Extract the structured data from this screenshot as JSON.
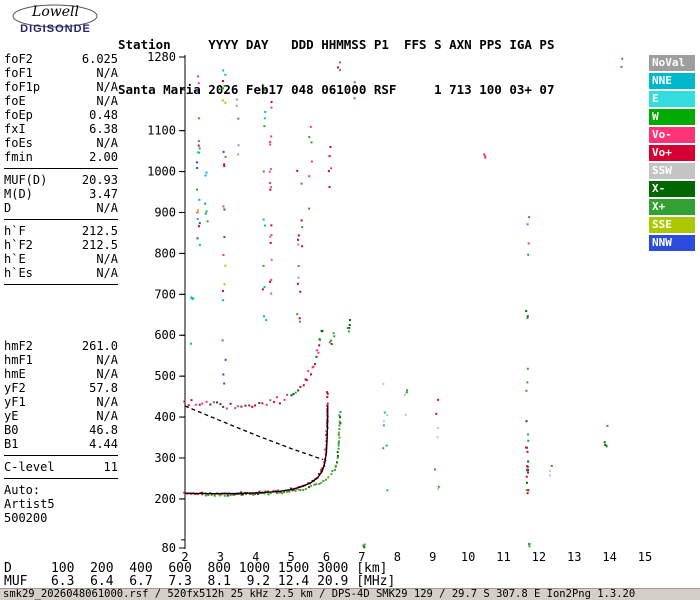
{
  "logo": {
    "line1": "Lowell",
    "line2": "DIGISONDE"
  },
  "header": {
    "line1": "Station     YYYY DAY   DDD HHMMSS P1  FFS S AXN PPS IGA PS",
    "line2": "Santa Maria 2026 Feb17 048 061000 RSF     1 713 100 03+ 07"
  },
  "params": {
    "groups": [
      {
        "rows": [
          {
            "label": "foF2",
            "value": "6.025"
          },
          {
            "label": "foF1",
            "value": "N/A"
          },
          {
            "label": "foF1p",
            "value": "N/A"
          },
          {
            "label": "foE",
            "value": "N/A"
          },
          {
            "label": "foEp",
            "value": "0.48"
          },
          {
            "label": "fxI",
            "value": "6.38"
          },
          {
            "label": "foEs",
            "value": "N/A"
          },
          {
            "label": "fmin",
            "value": "2.00"
          }
        ],
        "divider_after": true,
        "spacer_after": 0
      },
      {
        "rows": [
          {
            "label": "MUF(D)",
            "value": "20.93"
          },
          {
            "label": "M(D)",
            "value": "3.47"
          },
          {
            "label": "D",
            "value": "N/A"
          }
        ],
        "divider_after": true,
        "spacer_after": 0
      },
      {
        "rows": [
          {
            "label": "h`F",
            "value": "212.5"
          },
          {
            "label": "h`F2",
            "value": "212.5"
          },
          {
            "label": "h`E",
            "value": "N/A"
          },
          {
            "label": "h`Es",
            "value": "N/A"
          }
        ],
        "divider_after": true,
        "spacer_after": 50
      },
      {
        "rows": [
          {
            "label": "hmF2",
            "value": "261.0"
          },
          {
            "label": "hmF1",
            "value": "N/A"
          },
          {
            "label": "hmE",
            "value": "N/A"
          },
          {
            "label": "yF2",
            "value": "57.8"
          },
          {
            "label": "yF1",
            "value": "N/A"
          },
          {
            "label": "yE",
            "value": "N/A"
          },
          {
            "label": "B0",
            "value": "46.8"
          },
          {
            "label": "B1",
            "value": "4.44"
          }
        ],
        "divider_after": true,
        "spacer_after": 0
      },
      {
        "rows": [
          {
            "label": "C-level",
            "value": "11"
          }
        ],
        "divider_after": true,
        "spacer_after": 0
      },
      {
        "rows": [
          {
            "label": "Auto:",
            "value": ""
          },
          {
            "label": "Artist5",
            "value": ""
          },
          {
            "label": "500200",
            "value": ""
          }
        ],
        "divider_after": false,
        "spacer_after": 0
      }
    ]
  },
  "legend": {
    "items": [
      {
        "label": "NoVal",
        "color": "#9e9e9e"
      },
      {
        "label": "NNE",
        "color": "#00b8cc"
      },
      {
        "label": "E",
        "color": "#33dddd"
      },
      {
        "label": "W",
        "color": "#00aa00"
      },
      {
        "label": "Vo-",
        "color": "#ff3377"
      },
      {
        "label": "Vo+",
        "color": "#d40032"
      },
      {
        "label": "SSW",
        "color": "#c4c4c4"
      },
      {
        "label": "X-",
        "color": "#006600"
      },
      {
        "label": "X+",
        "color": "#33a033"
      },
      {
        "label": "SSE",
        "color": "#aac800"
      },
      {
        "label": "NNW",
        "color": "#2b4bdd"
      }
    ]
  },
  "footer": {
    "d_row": {
      "label": "D",
      "values": [
        "100",
        "200",
        "400",
        "600",
        "800",
        "1000",
        "1500",
        "3000"
      ],
      "unit": "[km]"
    },
    "muf_row": {
      "label": "MUF",
      "values": [
        "6.3",
        "6.4",
        "6.7",
        "7.3",
        "8.1",
        "9.2",
        "12.4",
        "20.9"
      ],
      "unit": "[MHz]"
    }
  },
  "status_bar": {
    "text": "smk29_2026048061000.rsf / 520fx512h 25 kHz 2.5 km / DPS-4D SMK29 129 / 29.7 S 307.8 E Ion2Png 1.3.20"
  },
  "chart_data": {
    "type": "scatter",
    "x_axis": {
      "unit": "[MHz]",
      "min": 2,
      "max": 15,
      "ticks": [
        2,
        3,
        4,
        5,
        6,
        7,
        8,
        9,
        10,
        11,
        12,
        13,
        14,
        15
      ]
    },
    "y_axis": {
      "unit": "[km]",
      "min": 80,
      "max": 1280,
      "tick_labels": [
        1280,
        1100,
        1000,
        900,
        800,
        700,
        600,
        500,
        400,
        300,
        200,
        80
      ]
    },
    "noise_seed": 48,
    "traces": [
      {
        "name": "f-layer-hop1-o-mode",
        "colors": [
          "#d40032",
          "#d40032",
          "#d40032",
          "#ff3377",
          "#a00028"
        ],
        "dot": 2,
        "step": 2.5,
        "jitter": 1.2,
        "points": [
          [
            2.0,
            213
          ],
          [
            2.3,
            212.5
          ],
          [
            2.7,
            212.5
          ],
          [
            3.1,
            212.5
          ],
          [
            3.5,
            213
          ],
          [
            3.9,
            214
          ],
          [
            4.2,
            215
          ],
          [
            4.5,
            217
          ],
          [
            4.8,
            220
          ],
          [
            5.0,
            223
          ],
          [
            5.2,
            227
          ],
          [
            5.4,
            233
          ],
          [
            5.6,
            242
          ],
          [
            5.75,
            253
          ],
          [
            5.85,
            265
          ],
          [
            5.92,
            281
          ],
          [
            5.96,
            301
          ],
          [
            5.99,
            330
          ],
          [
            6.01,
            365
          ],
          [
            6.02,
            400
          ],
          [
            6.03,
            432
          ]
        ]
      },
      {
        "name": "f-layer-hop1-x-mode",
        "colors": [
          "#33a033",
          "#33a033",
          "#006600",
          "#55aa22"
        ],
        "dot": 2,
        "step": 3,
        "jitter": 1.2,
        "points": [
          [
            2.5,
            210
          ],
          [
            2.9,
            210
          ],
          [
            3.3,
            210
          ],
          [
            3.7,
            211
          ],
          [
            4.1,
            212
          ],
          [
            4.5,
            214
          ],
          [
            4.9,
            217
          ],
          [
            5.2,
            221
          ],
          [
            5.5,
            228
          ],
          [
            5.8,
            238
          ],
          [
            6.0,
            249
          ],
          [
            6.12,
            259
          ],
          [
            6.22,
            272
          ],
          [
            6.29,
            290
          ],
          [
            6.33,
            315
          ],
          [
            6.36,
            350
          ],
          [
            6.375,
            385
          ],
          [
            6.38,
            418
          ]
        ]
      },
      {
        "name": "f-layer-hop2",
        "colors": [
          "#d40032",
          "#ff3377",
          "#33a033",
          "#006600",
          "#d40032"
        ],
        "dot": 2,
        "step": 3.5,
        "jitter": 4,
        "points": [
          [
            2.0,
            438
          ],
          [
            2.3,
            434
          ],
          [
            2.7,
            430
          ],
          [
            3.1,
            427
          ],
          [
            3.5,
            426
          ],
          [
            3.9,
            427
          ],
          [
            4.2,
            430
          ],
          [
            4.5,
            436
          ],
          [
            4.8,
            445
          ],
          [
            5.0,
            454
          ],
          [
            5.2,
            468
          ],
          [
            5.35,
            482
          ],
          [
            5.5,
            503
          ],
          [
            5.6,
            521
          ],
          [
            5.7,
            546
          ],
          [
            5.78,
            573
          ],
          [
            5.85,
            601
          ],
          [
            5.9,
            626
          ]
        ]
      }
    ],
    "profile_lines": [
      {
        "name": "artist-profile-fit-line",
        "style": "solid",
        "color": "#000000",
        "points": [
          [
            2.0,
            214
          ],
          [
            2.6,
            213
          ],
          [
            3.2,
            213
          ],
          [
            3.8,
            214
          ],
          [
            4.3,
            216
          ],
          [
            4.7,
            219
          ],
          [
            5.0,
            223
          ],
          [
            5.3,
            230
          ],
          [
            5.55,
            239
          ],
          [
            5.75,
            252
          ],
          [
            5.88,
            268
          ],
          [
            5.95,
            288
          ],
          [
            6.0,
            315
          ],
          [
            6.02,
            350
          ],
          [
            6.03,
            390
          ],
          [
            6.035,
            428
          ]
        ]
      },
      {
        "name": "topside-extrapolation-line",
        "style": "dashed",
        "color": "#000000",
        "points": [
          [
            2.0,
            427
          ],
          [
            3.0,
            391
          ],
          [
            4.0,
            356
          ],
          [
            5.0,
            323
          ],
          [
            5.6,
            305
          ],
          [
            5.9,
            296
          ]
        ]
      }
    ],
    "noise_clusters": [
      {
        "f": 2.38,
        "fs": 0.05,
        "h1": 800,
        "h2": 1280,
        "n": 20,
        "colors": [
          "#00b8cc",
          "#33a033",
          "#d40032",
          "#ff3377",
          "#2b4bdd",
          "#aac800"
        ]
      },
      {
        "f": 2.6,
        "fs": 0.04,
        "h1": 850,
        "h2": 1060,
        "n": 6,
        "colors": [
          "#33a033",
          "#00b8cc"
        ]
      },
      {
        "f": 2.2,
        "fs": 0.04,
        "h1": 560,
        "h2": 700,
        "n": 4,
        "colors": [
          "#00b8cc",
          "#33a033"
        ]
      },
      {
        "f": 3.1,
        "fs": 0.05,
        "h1": 450,
        "h2": 1280,
        "n": 24,
        "colors": [
          "#ff3377",
          "#33a033",
          "#d40032",
          "#2b4bdd",
          "#00b8cc",
          "#aac800"
        ]
      },
      {
        "f": 3.5,
        "fs": 0.04,
        "h1": 1030,
        "h2": 1180,
        "n": 5,
        "colors": [
          "#33a033",
          "#9e9e9e"
        ]
      },
      {
        "f": 4.25,
        "fs": 0.05,
        "h1": 620,
        "h2": 1280,
        "n": 12,
        "colors": [
          "#33a033",
          "#d40032",
          "#00b8cc"
        ]
      },
      {
        "f": 4.42,
        "fs": 0.03,
        "h1": 640,
        "h2": 1270,
        "n": 18,
        "colors": [
          "#ff3377",
          "#e8559a",
          "#d40032"
        ]
      },
      {
        "f": 5.25,
        "fs": 0.08,
        "h1": 560,
        "h2": 1050,
        "n": 15,
        "colors": [
          "#33a033",
          "#d40032",
          "#9e9e9e"
        ]
      },
      {
        "f": 5.55,
        "fs": 0.05,
        "h1": 850,
        "h2": 1150,
        "n": 6,
        "colors": [
          "#33a033",
          "#ff3377"
        ]
      },
      {
        "f": 6.1,
        "fs": 0.04,
        "h1": 950,
        "h2": 1080,
        "n": 5,
        "colors": [
          "#d40032",
          "#ff3377"
        ]
      },
      {
        "f": 6.35,
        "fs": 0.04,
        "h1": 1240,
        "h2": 1280,
        "n": 3,
        "colors": [
          "#d40032",
          "#33a033"
        ]
      },
      {
        "f": 6.65,
        "fs": 0.05,
        "h1": 570,
        "h2": 640,
        "n": 5,
        "colors": [
          "#33a033",
          "#006600"
        ]
      },
      {
        "f": 6.8,
        "fs": 0.03,
        "h1": 1150,
        "h2": 1230,
        "n": 2,
        "colors": [
          "#33a033"
        ]
      },
      {
        "f": 7.05,
        "fs": 0.03,
        "h1": 80,
        "h2": 95,
        "n": 4,
        "colors": [
          "#33a033",
          "#006600"
        ]
      },
      {
        "f": 7.6,
        "fs": 0.12,
        "h1": 210,
        "h2": 510,
        "n": 8,
        "colors": [
          "#c4c4c4",
          "#33a033",
          "#00b8cc"
        ]
      },
      {
        "f": 8.3,
        "fs": 0.1,
        "h1": 300,
        "h2": 480,
        "n": 4,
        "colors": [
          "#c4c4c4",
          "#33a033"
        ]
      },
      {
        "f": 9.12,
        "fs": 0.06,
        "h1": 220,
        "h2": 470,
        "n": 7,
        "colors": [
          "#33a033",
          "#d40032",
          "#c4c4c4"
        ]
      },
      {
        "f": 10.45,
        "fs": 0.04,
        "h1": 1000,
        "h2": 1060,
        "n": 3,
        "colors": [
          "#ff3377"
        ]
      },
      {
        "f": 11.68,
        "fs": 0.04,
        "h1": 210,
        "h2": 360,
        "n": 18,
        "colors": [
          "#33a033",
          "#006600",
          "#d40032"
        ]
      },
      {
        "f": 11.68,
        "fs": 0.04,
        "h1": 380,
        "h2": 660,
        "n": 7,
        "colors": [
          "#33a033",
          "#006600"
        ]
      },
      {
        "f": 11.7,
        "fs": 0.03,
        "h1": 780,
        "h2": 930,
        "n": 4,
        "colors": [
          "#33a033",
          "#ff3377"
        ]
      },
      {
        "f": 11.72,
        "fs": 0.02,
        "h1": 80,
        "h2": 92,
        "n": 3,
        "colors": [
          "#33a033"
        ]
      },
      {
        "f": 12.35,
        "fs": 0.04,
        "h1": 230,
        "h2": 300,
        "n": 3,
        "colors": [
          "#33a033",
          "#c4c4c4"
        ]
      },
      {
        "f": 13.9,
        "fs": 0.05,
        "h1": 320,
        "h2": 385,
        "n": 5,
        "colors": [
          "#33a033",
          "#006600"
        ]
      },
      {
        "f": 14.35,
        "fs": 0.03,
        "h1": 1250,
        "h2": 1280,
        "n": 2,
        "colors": [
          "#33a033"
        ]
      },
      {
        "f": 6.15,
        "fs": 0.08,
        "h1": 560,
        "h2": 640,
        "n": 5,
        "colors": [
          "#33a033",
          "#d40032"
        ]
      },
      {
        "f": 6.03,
        "fs": 0.02,
        "h1": 432,
        "h2": 470,
        "n": 4,
        "colors": [
          "#d40032"
        ]
      }
    ]
  }
}
